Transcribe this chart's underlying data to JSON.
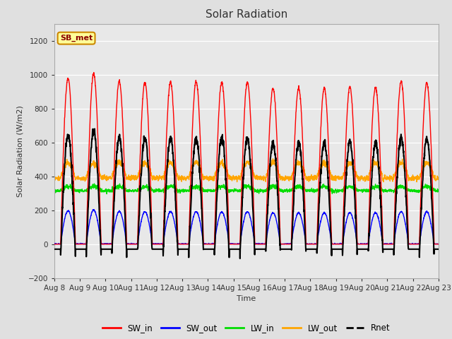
{
  "title": "Solar Radiation",
  "ylabel": "Solar Radiation (W/m2)",
  "xlabel": "Time",
  "ylim": [
    -200,
    1300
  ],
  "yticks": [
    -200,
    0,
    200,
    400,
    600,
    800,
    1000,
    1200
  ],
  "n_days": 15,
  "n_points_per_day": 144,
  "bg_color": "#e0e0e0",
  "plot_bg_color": "#e8e8e8",
  "sw_in_color": "#ff0000",
  "sw_out_color": "#0000ff",
  "lw_in_color": "#00dd00",
  "lw_out_color": "#ffa500",
  "rnet_color": "#000000",
  "annotation_text": "SB_met",
  "annotation_bg": "#ffff99",
  "annotation_border": "#cc8800",
  "x_labels": [
    "Aug 8",
    "Aug 9",
    "Aug 10",
    "Aug 11",
    "Aug 12",
    "Aug 13",
    "Aug 14",
    "Aug 15",
    "Aug 16",
    "Aug 17",
    "Aug 18",
    "Aug 19",
    "Aug 20",
    "Aug 21",
    "Aug 22",
    "Aug 23"
  ],
  "day_peaks_sw": [
    980,
    1005,
    960,
    955,
    955,
    960,
    955,
    955,
    920,
    920,
    920,
    925,
    925,
    960,
    950
  ],
  "lw_in_base": 315,
  "lw_out_base": 390
}
